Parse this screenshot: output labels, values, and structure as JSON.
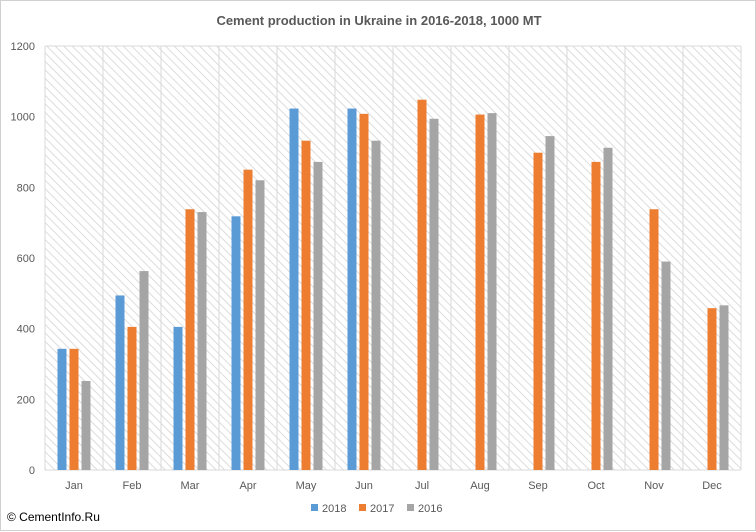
{
  "chart_data": {
    "type": "bar",
    "title": "Cement production in Ukraine in 2016-2018, 1000 MT",
    "categories": [
      "Jan",
      "Feb",
      "Mar",
      "Apr",
      "May",
      "Jun",
      "Jul",
      "Aug",
      "Sep",
      "Oct",
      "Nov",
      "Dec"
    ],
    "series": [
      {
        "name": "2018",
        "color": "#5b9bd5",
        "values": [
          343,
          494,
          405,
          718,
          1023,
          1023,
          null,
          null,
          null,
          null,
          null,
          null
        ]
      },
      {
        "name": "2017",
        "color": "#ed7d31",
        "values": [
          343,
          405,
          738,
          850,
          932,
          1008,
          1048,
          1006,
          898,
          872,
          738,
          458
        ]
      },
      {
        "name": "2016",
        "color": "#a5a5a5",
        "values": [
          252,
          563,
          730,
          820,
          872,
          932,
          994,
          1010,
          945,
          912,
          590,
          466
        ]
      }
    ],
    "ylim": [
      0,
      1200
    ],
    "yticks": [
      0,
      200,
      400,
      600,
      800,
      1000,
      1200
    ],
    "grid": "vertical category separators",
    "legend_position": "bottom",
    "plot_background": "hatched light gray"
  },
  "footer": {
    "credit": "© CementInfo.Ru"
  }
}
